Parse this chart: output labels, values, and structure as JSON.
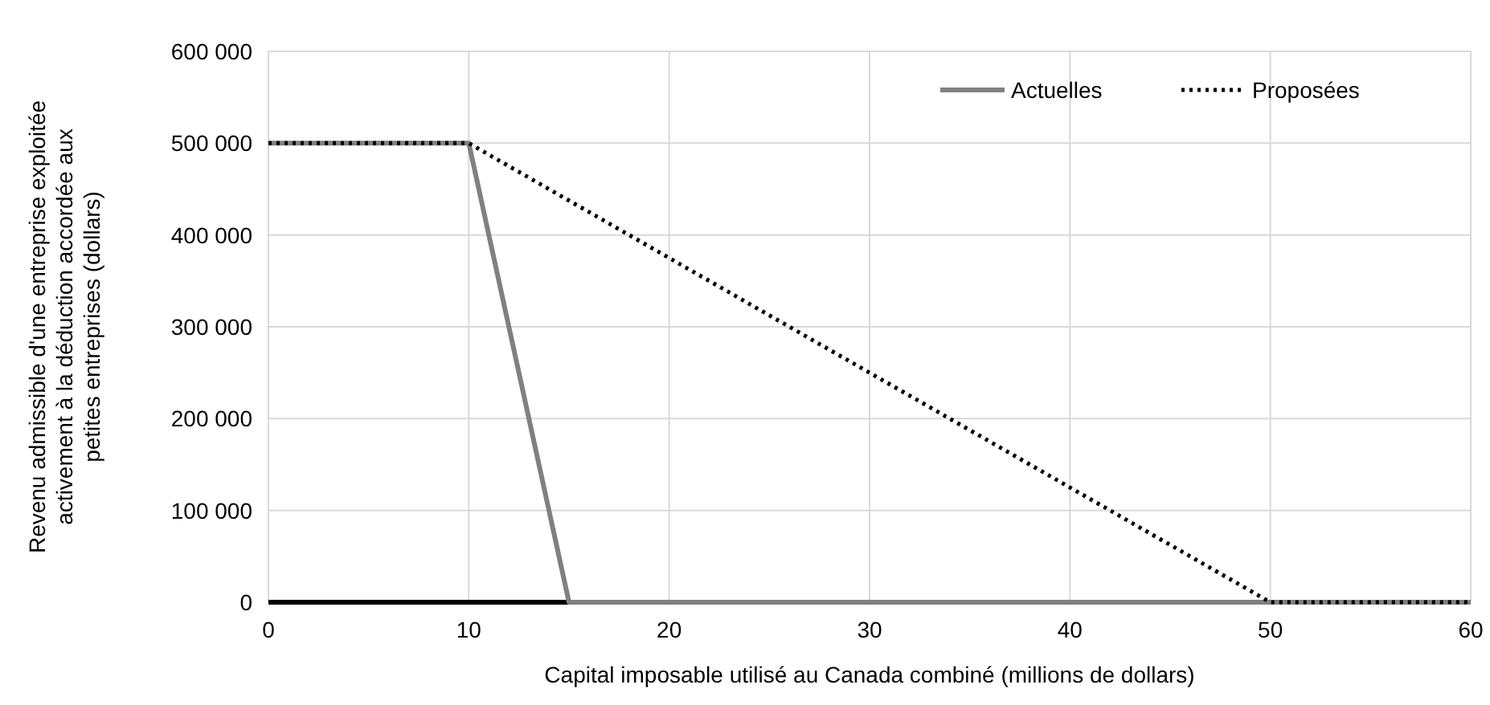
{
  "chart_data": {
    "type": "line",
    "xlabel": "Capital imposable utilisé au Canada combiné (millions de dollars)",
    "ylabel": "Revenu admissible d'une entreprise exploitée activement à la déduction accordée aux petites entreprises (dollars)",
    "xlim": [
      0,
      60
    ],
    "xticks": [
      0,
      10,
      20,
      30,
      40,
      50,
      60
    ],
    "ylim": [
      0,
      600000
    ],
    "yticks": [
      {
        "value": 0,
        "label": "0"
      },
      {
        "value": 100000,
        "label": "100 000"
      },
      {
        "value": 200000,
        "label": "200 000"
      },
      {
        "value": 300000,
        "label": "300 000"
      },
      {
        "value": 400000,
        "label": "400 000"
      },
      {
        "value": 500000,
        "label": "500 000"
      },
      {
        "value": 600000,
        "label": "600 000"
      }
    ],
    "grid": true,
    "legend": "top right",
    "series": [
      {
        "name": "Actuelles",
        "color": "#808080",
        "line_style": "solid",
        "x": [
          0,
          10,
          15,
          60
        ],
        "values": [
          500000,
          500000,
          0,
          0
        ]
      },
      {
        "name": "Proposées",
        "color": "#000000",
        "line_style": "dotted",
        "x": [
          0,
          10,
          50,
          60
        ],
        "values": [
          500000,
          500000,
          0,
          0
        ]
      }
    ]
  }
}
